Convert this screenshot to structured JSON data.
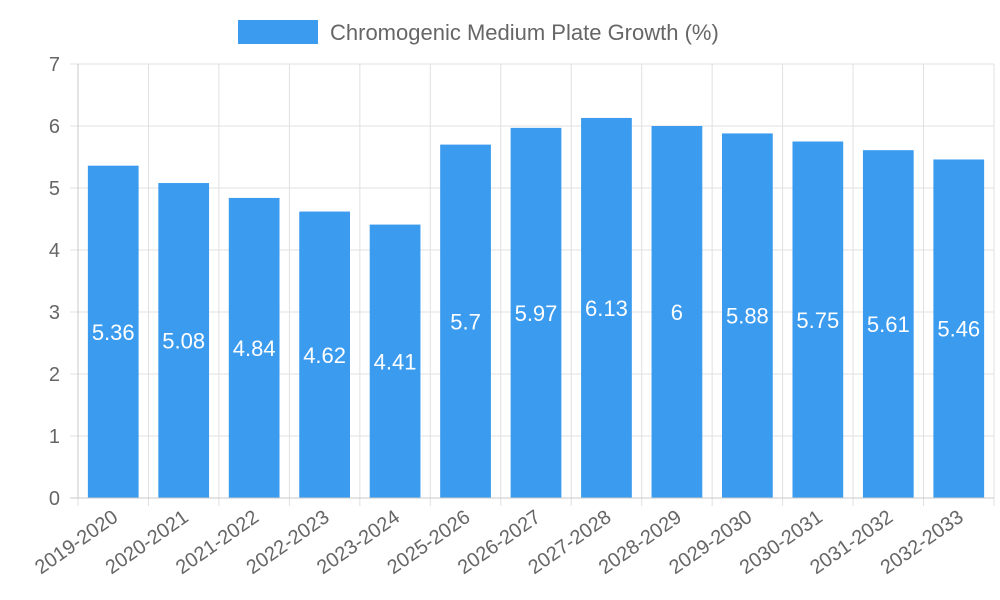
{
  "chart_data": {
    "type": "bar",
    "title": "",
    "xlabel": "",
    "ylabel": "",
    "legend": [
      "Chromogenic Medium Plate Growth (%)"
    ],
    "legend_position": "top-center",
    "categories": [
      "2019-2020",
      "2020-2021",
      "2021-2022",
      "2022-2023",
      "2023-2024",
      "2025-2026",
      "2026-2027",
      "2027-2028",
      "2028-2029",
      "2029-2030",
      "2030-2031",
      "2031-2032",
      "2032-2033"
    ],
    "series": [
      {
        "name": "Chromogenic Medium Plate Growth (%)",
        "values": [
          5.36,
          5.08,
          4.84,
          4.62,
          4.41,
          5.7,
          5.97,
          6.13,
          6,
          5.88,
          5.75,
          5.61,
          5.46
        ],
        "labels": [
          "5.36",
          "5.08",
          "4.84",
          "4.62",
          "4.41",
          "5.7",
          "5.97",
          "6.13",
          "6",
          "5.88",
          "5.75",
          "5.61",
          "5.46"
        ],
        "color": "#3a9bef"
      }
    ],
    "ylim": [
      0,
      7
    ],
    "yticks": [
      "0",
      "1",
      "2",
      "3",
      "4",
      "5",
      "6",
      "7"
    ],
    "grid": true
  }
}
